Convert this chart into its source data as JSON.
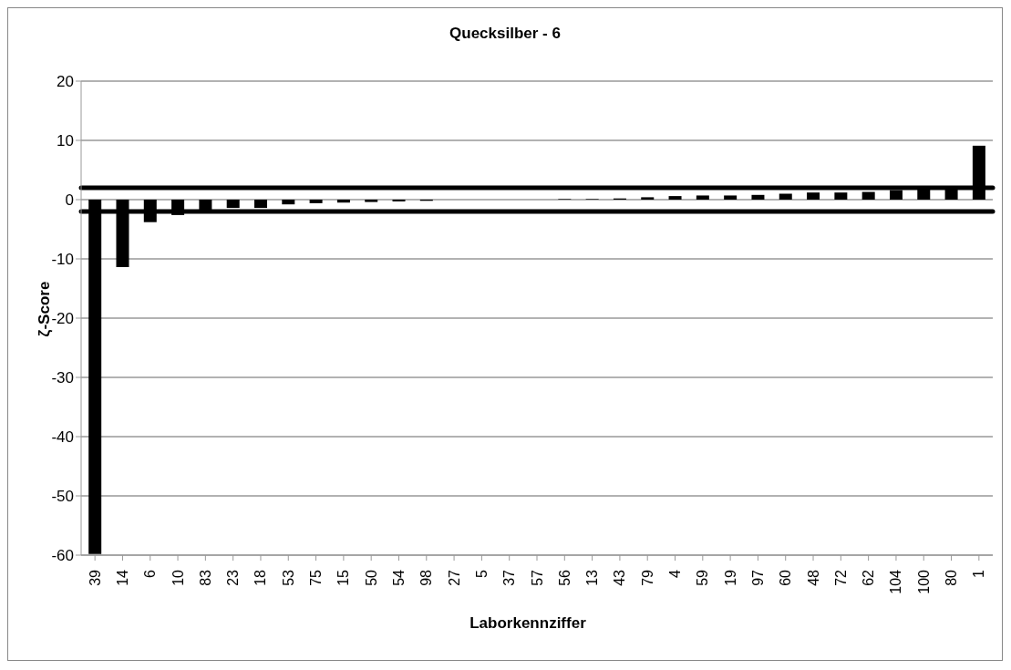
{
  "chart_data": {
    "type": "bar",
    "title": "Quecksilber - 6",
    "xlabel": "Laborkennziffer",
    "ylabel": "ζ-Score",
    "categories": [
      "39",
      "14",
      "6",
      "10",
      "83",
      "23",
      "18",
      "53",
      "75",
      "15",
      "50",
      "54",
      "98",
      "27",
      "5",
      "37",
      "57",
      "56",
      "13",
      "43",
      "79",
      "4",
      "59",
      "19",
      "97",
      "60",
      "48",
      "72",
      "62",
      "104",
      "100",
      "80",
      "1"
    ],
    "values": [
      -59.8,
      -11.4,
      -3.8,
      -2.6,
      -2.3,
      -1.4,
      -1.4,
      -0.8,
      -0.6,
      -0.5,
      -0.4,
      -0.3,
      -0.2,
      0,
      0,
      0,
      0,
      0.1,
      0.1,
      0.2,
      0.4,
      0.6,
      0.7,
      0.7,
      0.8,
      1.0,
      1.2,
      1.2,
      1.3,
      1.6,
      1.7,
      1.7,
      9.1
    ],
    "color": "#000000",
    "ylim": [
      -60,
      20
    ],
    "yticks": [
      -60,
      -50,
      -40,
      -30,
      -20,
      -10,
      0,
      10,
      20
    ],
    "grid": "y",
    "ref_lines": [
      {
        "axis": "y",
        "value": 2,
        "color": "#000000"
      },
      {
        "axis": "y",
        "value": -2,
        "color": "#000000"
      }
    ]
  }
}
